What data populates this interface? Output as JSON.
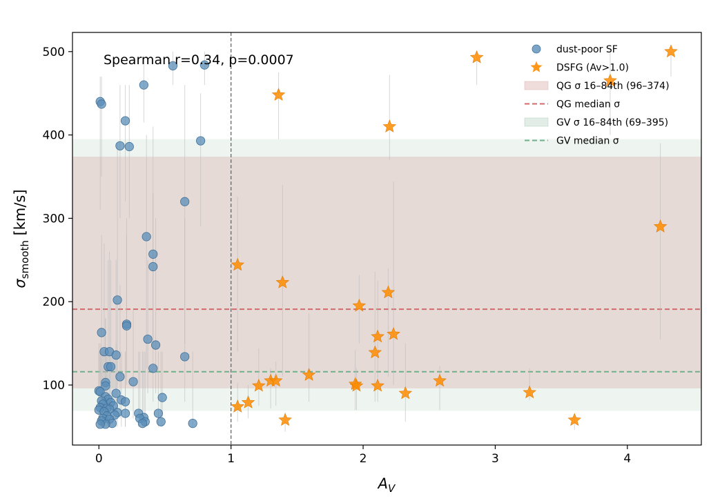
{
  "chart_data": {
    "type": "scatter",
    "xlabel_main": "A",
    "xlabel_sub": "V",
    "ylabel_main": "σ",
    "ylabel_sub": "smooth",
    "ylabel_unit": " [km/s]",
    "xlim": [
      -0.2,
      4.56
    ],
    "ylim": [
      28,
      523
    ],
    "xticks": [
      0,
      1,
      2,
      3,
      4
    ],
    "yticks": [
      100,
      200,
      300,
      400,
      500
    ],
    "grid": false,
    "legend_position": "top-right",
    "annotation": "Spearman r=0.34, p=0.0007",
    "vline": {
      "x": 1.0,
      "color": "#666666",
      "style": "dashed"
    },
    "bands": [
      {
        "name": "GV σ 16–84th (69–395)",
        "low": 69,
        "high": 395,
        "color": "#9fc5b1"
      },
      {
        "name": "QG σ 16–84th (96–374)",
        "low": 96,
        "high": 374,
        "color": "#d6a9a5"
      }
    ],
    "hlines": [
      {
        "name": "QG median σ",
        "y": 191,
        "color": "#d06a6a"
      },
      {
        "name": "GV median σ",
        "y": 116,
        "color": "#6fb08a"
      }
    ],
    "series": [
      {
        "name": "dust-poor SF",
        "marker": "circle",
        "color": "#5b8db8",
        "points": [
          [
            0.56,
            483,
            460,
            500
          ],
          [
            0.8,
            484,
            460,
            500
          ],
          [
            0.34,
            460,
            415,
            490
          ],
          [
            0.01,
            440,
            310,
            470
          ],
          [
            0.02,
            437,
            350,
            470
          ],
          [
            0.2,
            417,
            320,
            460
          ],
          [
            0.16,
            387,
            300,
            460
          ],
          [
            0.23,
            386,
            300,
            460
          ],
          [
            0.77,
            393,
            290,
            450
          ],
          [
            0.65,
            320,
            150,
            460
          ],
          [
            0.36,
            278,
            120,
            400
          ],
          [
            0.41,
            257,
            150,
            410
          ],
          [
            0.41,
            242,
            200,
            330
          ],
          [
            0.14,
            202,
            100,
            390
          ],
          [
            0.21,
            173,
            100,
            300
          ],
          [
            0.21,
            171,
            110,
            280
          ],
          [
            0.02,
            163,
            80,
            280
          ],
          [
            0.37,
            155,
            90,
            250
          ],
          [
            0.43,
            148,
            90,
            300
          ],
          [
            0.04,
            140,
            60,
            270
          ],
          [
            0.08,
            140,
            70,
            260
          ],
          [
            0.13,
            136,
            70,
            250
          ],
          [
            0.65,
            134,
            80,
            300
          ],
          [
            0.07,
            122,
            60,
            250
          ],
          [
            0.09,
            122,
            60,
            250
          ],
          [
            0.41,
            120,
            80,
            200
          ],
          [
            0.16,
            110,
            60,
            220
          ],
          [
            0.26,
            104,
            60,
            190
          ],
          [
            0.05,
            103,
            60,
            180
          ],
          [
            0.05,
            99,
            60,
            180
          ],
          [
            0.0,
            93,
            50,
            150
          ],
          [
            0.01,
            92,
            50,
            150
          ],
          [
            0.13,
            90,
            50,
            150
          ],
          [
            0.05,
            86,
            50,
            140
          ],
          [
            0.48,
            85,
            50,
            140
          ],
          [
            0.07,
            83,
            50,
            140
          ],
          [
            0.17,
            82,
            50,
            140
          ],
          [
            0.02,
            81,
            50,
            140
          ],
          [
            0.2,
            80,
            50,
            140
          ],
          [
            0.09,
            79,
            50,
            140
          ],
          [
            0.03,
            77,
            50,
            140
          ],
          [
            0.11,
            75,
            50,
            140
          ],
          [
            0.01,
            73,
            50,
            140
          ],
          [
            0.06,
            72,
            50,
            140
          ],
          [
            0.08,
            71,
            50,
            140
          ],
          [
            0.0,
            70,
            50,
            140
          ],
          [
            0.04,
            68,
            50,
            140
          ],
          [
            0.14,
            67,
            50,
            140
          ],
          [
            0.2,
            66,
            50,
            140
          ],
          [
            0.3,
            66,
            50,
            140
          ],
          [
            0.45,
            66,
            50,
            140
          ],
          [
            0.12,
            64,
            50,
            140
          ],
          [
            0.06,
            63,
            50,
            140
          ],
          [
            0.34,
            61,
            50,
            140
          ],
          [
            0.03,
            60,
            50,
            140
          ],
          [
            0.31,
            60,
            50,
            140
          ],
          [
            0.08,
            59,
            50,
            140
          ],
          [
            0.02,
            57,
            50,
            140
          ],
          [
            0.35,
            56,
            50,
            140
          ],
          [
            0.47,
            56,
            50,
            140
          ],
          [
            0.33,
            54,
            50,
            140
          ],
          [
            0.71,
            54,
            50,
            140
          ],
          [
            0.1,
            54,
            50,
            140
          ],
          [
            0.05,
            53,
            50,
            140
          ],
          [
            0.01,
            53,
            50,
            140
          ]
        ]
      },
      {
        "name": "DSFG (Av>1.0)",
        "marker": "star",
        "color": "#ff8c00",
        "points": [
          [
            2.86,
            493,
            460,
            500
          ],
          [
            4.33,
            500,
            470,
            500
          ],
          [
            3.87,
            465,
            400,
            500
          ],
          [
            1.36,
            448,
            395,
            475
          ],
          [
            2.2,
            410,
            370,
            472
          ],
          [
            4.25,
            290,
            155,
            390
          ],
          [
            1.05,
            244,
            140,
            326
          ],
          [
            1.39,
            223,
            110,
            340
          ],
          [
            1.97,
            195,
            150,
            232
          ],
          [
            2.19,
            211,
            110,
            240
          ],
          [
            2.23,
            161,
            100,
            344
          ],
          [
            2.11,
            158,
            110,
            225
          ],
          [
            2.09,
            139,
            80,
            236
          ],
          [
            1.59,
            112,
            80,
            186
          ],
          [
            1.3,
            105,
            72,
            120
          ],
          [
            1.34,
            105,
            75,
            128
          ],
          [
            2.58,
            105,
            70,
            123
          ],
          [
            1.21,
            99,
            75,
            144
          ],
          [
            1.94,
            101,
            70,
            142
          ],
          [
            1.95,
            99,
            70,
            120
          ],
          [
            2.11,
            99,
            80,
            112
          ],
          [
            2.32,
            90,
            56,
            150
          ],
          [
            3.26,
            91,
            82,
            120
          ],
          [
            1.05,
            74,
            56,
            103
          ],
          [
            1.13,
            79,
            60,
            100
          ],
          [
            1.41,
            58,
            44,
            67
          ],
          [
            3.6,
            58,
            46,
            63
          ]
        ]
      }
    ]
  }
}
